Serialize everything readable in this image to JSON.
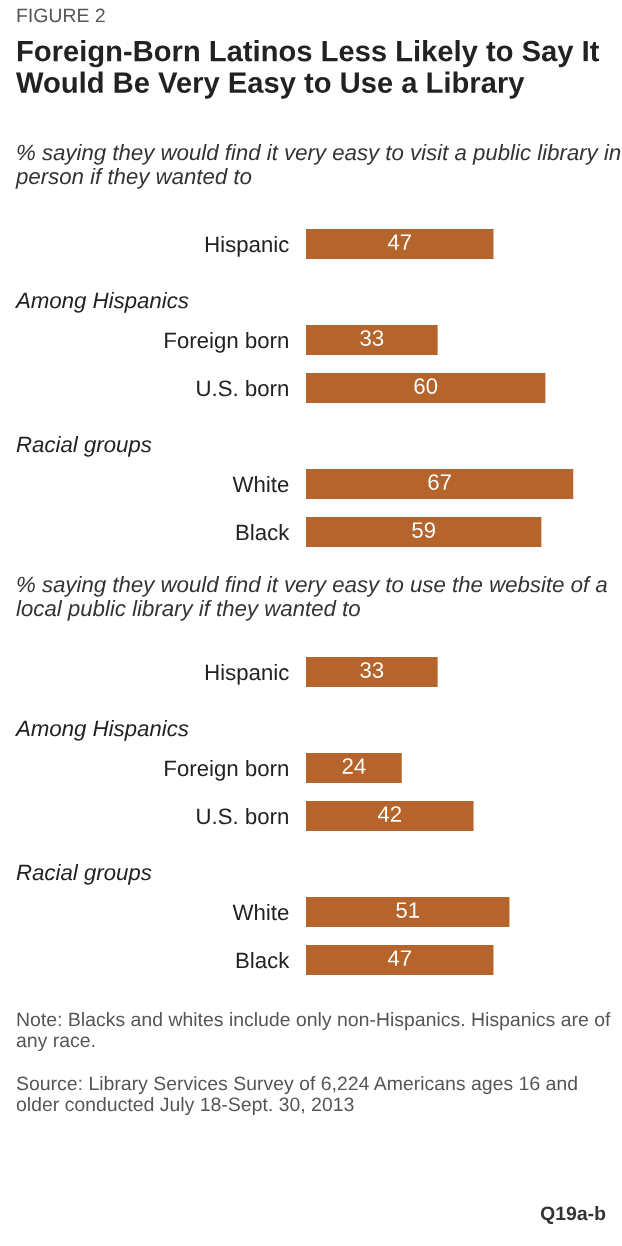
{
  "chart_data": [
    {
      "type": "bar",
      "orientation": "horizontal",
      "title": "Foreign-Born Latinos Less Likely to Say It Would Be Very Easy to Use a Library",
      "subtitle": "% saying they would find it very easy to visit a public library in person if they wanted to",
      "annotations": [
        "FIGURE 2"
      ],
      "categories": [
        "Hispanic"
      ],
      "values": [
        47
      ],
      "color": "#b5652b",
      "data_labels": true
    },
    {
      "type": "bar",
      "orientation": "horizontal",
      "title": "Among Hispanics",
      "categories": [
        "Foreign born",
        "U.S. born"
      ],
      "values": [
        33,
        60
      ],
      "color": "#b5652b",
      "data_labels": true
    },
    {
      "type": "bar",
      "orientation": "horizontal",
      "title": "Racial groups",
      "categories": [
        "White",
        "Black"
      ],
      "values": [
        67,
        59
      ],
      "color": "#b5652b",
      "data_labels": true
    },
    {
      "type": "bar",
      "orientation": "horizontal",
      "subtitle": "% saying they would find it very easy to use the website of a local public library if they wanted to",
      "categories": [
        "Hispanic"
      ],
      "values": [
        33
      ],
      "color": "#b5652b",
      "data_labels": true
    },
    {
      "type": "bar",
      "orientation": "horizontal",
      "title": "Among Hispanics",
      "categories": [
        "Foreign born",
        "U.S. born"
      ],
      "values": [
        24,
        42
      ],
      "color": "#b5652b",
      "data_labels": true
    },
    {
      "type": "bar",
      "orientation": "horizontal",
      "title": "Racial groups",
      "categories": [
        "White",
        "Black"
      ],
      "values": [
        51,
        47
      ],
      "color": "#b5652b",
      "data_labels": true,
      "annotations": [
        "Note: Blacks and whites include only non-Hispanics. Hispanics are of any race.",
        "Source: Library Services Survey of 6,224 Americans ages 16 and older conducted July 18-Sept. 30, 2013",
        "Q19a-b"
      ]
    }
  ]
}
